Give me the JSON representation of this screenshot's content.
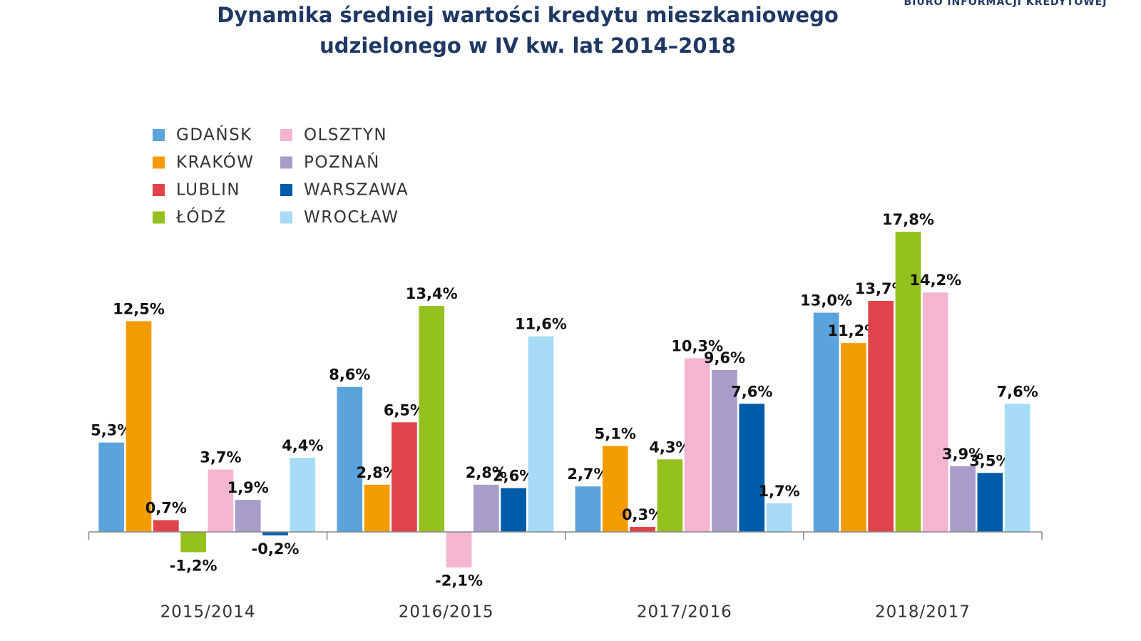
{
  "chart_data": {
    "type": "bar",
    "title": "Dynamika średniej wartości kredytu mieszkaniowego udzielonego w IV kw. lat 2014–2018",
    "annotation": "BIURO INFORMACJI KREDYTOWEJ",
    "categories": [
      "2015/2014",
      "2016/2015",
      "2017/2016",
      "2018/2017"
    ],
    "ylim": [
      -3,
      20
    ],
    "series": [
      {
        "name": "GDAŃSK",
        "color": "#5ba3dc",
        "values": [
          5.3,
          8.6,
          2.7,
          13.0
        ],
        "value_labels": [
          "5,3%",
          "8,6%",
          "2,7%",
          "13,0%"
        ]
      },
      {
        "name": "KRAKÓW",
        "color": "#f39c00",
        "values": [
          12.5,
          2.8,
          5.1,
          11.2
        ],
        "value_labels": [
          "12,5%",
          "2,8%",
          "5,1%",
          "11,2%"
        ]
      },
      {
        "name": "LUBLIN",
        "color": "#e0444a",
        "values": [
          0.7,
          6.5,
          0.3,
          13.7
        ],
        "value_labels": [
          "0,7%",
          "6,5%",
          "0,3%",
          "13,7%"
        ]
      },
      {
        "name": "ŁÓDŹ",
        "color": "#95c11f",
        "values": [
          -1.2,
          13.4,
          4.3,
          17.8
        ],
        "value_labels": [
          "-1,2%",
          "13,4%",
          "4,3%",
          "17,8%"
        ]
      },
      {
        "name": "OLSZTYN",
        "color": "#f4b5d0",
        "values": [
          3.7,
          -2.1,
          10.3,
          14.2
        ],
        "value_labels": [
          "3,7%",
          "-2,1%",
          "10,3%",
          "14,2%"
        ]
      },
      {
        "name": "POZNAŃ",
        "color": "#a89ccb",
        "values": [
          1.9,
          2.8,
          9.6,
          3.9
        ],
        "value_labels": [
          "1,9%",
          "2,8%",
          "9,6%",
          "3,9%"
        ]
      },
      {
        "name": "WARSZAWA",
        "color": "#005ca9",
        "values": [
          -0.2,
          2.6,
          7.6,
          3.5
        ],
        "value_labels": [
          "-0,2%",
          "2,6%",
          "7,6%",
          "3,5%"
        ]
      },
      {
        "name": "WROCŁAW",
        "color": "#a7dbf5",
        "values": [
          4.4,
          11.6,
          1.7,
          7.6
        ],
        "value_labels": [
          "4,4%",
          "11,6%",
          "1,7%",
          "7,6%"
        ]
      }
    ]
  }
}
